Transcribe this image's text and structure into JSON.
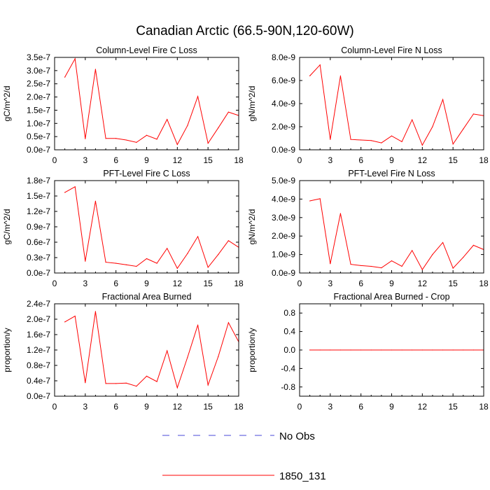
{
  "figure": {
    "title": "Canadian Arctic (66.5-90N,120-60W)",
    "legend": {
      "position": "bottom-center",
      "entries": [
        {
          "label": "No Obs",
          "style": "dashed",
          "color": "#4a4ad8"
        },
        {
          "label": "1850_131",
          "style": "solid",
          "color": "#ff0000"
        }
      ]
    }
  },
  "chart_data": [
    {
      "type": "line",
      "title": "Column-Level Fire C Loss",
      "ylabel": "gC/m^2/d",
      "xlim": [
        0,
        18
      ],
      "ylim": [
        0,
        3.5e-07
      ],
      "xticks": [
        "0",
        "3",
        "6",
        "9",
        "12",
        "15",
        "18"
      ],
      "yticks": [
        "0.0e-7",
        "0.5e-7",
        "1.0e-7",
        "1.5e-7",
        "2.0e-7",
        "2.5e-7",
        "3.0e-7",
        "3.5e-7"
      ],
      "series": [
        {
          "name": "1850_131",
          "color": "#ff0000",
          "x": [
            1,
            2,
            3,
            4,
            5,
            6,
            7,
            8,
            9,
            10,
            11,
            12,
            13,
            14,
            15,
            16,
            17,
            18
          ],
          "y": [
            2.75e-07,
            3.45e-07,
            4.2e-08,
            3.05e-07,
            4.3e-08,
            4.3e-08,
            3.7e-08,
            2.8e-08,
            5.5e-08,
            4e-08,
            1.15e-07,
            2e-08,
            9.2e-08,
            2.02e-07,
            2.5e-08,
            8.3e-08,
            1.43e-07,
            1.3e-07
          ]
        }
      ]
    },
    {
      "type": "line",
      "title": "Column-Level Fire N Loss",
      "ylabel": "gN/m^2/d",
      "xlim": [
        0,
        18
      ],
      "ylim": [
        0,
        8e-09
      ],
      "xticks": [
        "0",
        "3",
        "6",
        "9",
        "12",
        "15",
        "18"
      ],
      "yticks": [
        "0.0e-9",
        "2.0e-9",
        "4.0e-9",
        "6.0e-9",
        "8.0e-9"
      ],
      "series": [
        {
          "name": "1850_131",
          "color": "#ff0000",
          "x": [
            1,
            2,
            3,
            4,
            5,
            6,
            7,
            8,
            9,
            10,
            11,
            12,
            13,
            14,
            15,
            16,
            17,
            18
          ],
          "y": [
            6.4e-09,
            7.35e-09,
            9e-10,
            6.4e-09,
            9e-10,
            8.5e-10,
            8e-10,
            6e-10,
            1.2e-09,
            7e-10,
            2.6e-09,
            4e-10,
            2e-09,
            4.35e-09,
            5e-10,
            1.8e-09,
            3.1e-09,
            2.95e-09
          ]
        }
      ]
    },
    {
      "type": "line",
      "title": "PFT-Level Fire C Loss",
      "ylabel": "gC/m^2/d",
      "xlim": [
        0,
        18
      ],
      "ylim": [
        0,
        1.8e-07
      ],
      "xticks": [
        "0",
        "3",
        "6",
        "9",
        "12",
        "15",
        "18"
      ],
      "yticks": [
        "0.0e-7",
        "0.3e-7",
        "0.6e-7",
        "0.9e-7",
        "1.2e-7",
        "1.5e-7",
        "1.8e-7"
      ],
      "series": [
        {
          "name": "1850_131",
          "color": "#ff0000",
          "x": [
            1,
            2,
            3,
            4,
            5,
            6,
            7,
            8,
            9,
            10,
            11,
            12,
            13,
            14,
            15,
            16,
            17,
            18
          ],
          "y": [
            1.57e-07,
            1.68e-07,
            2.3e-08,
            1.4e-07,
            2.1e-08,
            1.9e-08,
            1.6e-08,
            1.3e-08,
            2.8e-08,
            1.9e-08,
            4.8e-08,
            9e-09,
            3.8e-08,
            7.1e-08,
            1.1e-08,
            3.6e-08,
            6.3e-08,
            5e-08
          ]
        }
      ]
    },
    {
      "type": "line",
      "title": "PFT-Level Fire N Loss",
      "ylabel": "gN/m^2/d",
      "xlim": [
        0,
        18
      ],
      "ylim": [
        0,
        5e-09
      ],
      "xticks": [
        "0",
        "3",
        "6",
        "9",
        "12",
        "15",
        "18"
      ],
      "yticks": [
        "0.0e-9",
        "1.0e-9",
        "2.0e-9",
        "3.0e-9",
        "4.0e-9",
        "5.0e-9"
      ],
      "series": [
        {
          "name": "1850_131",
          "color": "#ff0000",
          "x": [
            1,
            2,
            3,
            4,
            5,
            6,
            7,
            8,
            9,
            10,
            11,
            12,
            13,
            14,
            15,
            16,
            17,
            18
          ],
          "y": [
            3.9e-09,
            4.02e-09,
            5e-10,
            3.22e-09,
            4.7e-10,
            4e-10,
            3.6e-10,
            2.8e-10,
            6.6e-10,
            3.6e-10,
            1.22e-09,
            1.8e-10,
            1e-09,
            1.65e-09,
            2.6e-10,
            8.5e-10,
            1.5e-09,
            1.27e-09
          ]
        }
      ]
    },
    {
      "type": "line",
      "title": "Fractional Area Burned",
      "ylabel": "proportion/y",
      "xlim": [
        0,
        18
      ],
      "ylim": [
        0,
        2.4e-07
      ],
      "xticks": [
        "0",
        "3",
        "6",
        "9",
        "12",
        "15",
        "18"
      ],
      "yticks": [
        "0.0e-7",
        "0.4e-7",
        "0.8e-7",
        "1.2e-7",
        "1.6e-7",
        "2.0e-7",
        "2.4e-7"
      ],
      "series": [
        {
          "name": "1850_131",
          "color": "#ff0000",
          "x": [
            1,
            2,
            3,
            4,
            5,
            6,
            7,
            8,
            9,
            10,
            11,
            12,
            13,
            14,
            15,
            16,
            17,
            18
          ],
          "y": [
            1.93e-07,
            2.08e-07,
            3.5e-08,
            2.2e-07,
            3.3e-08,
            3.3e-08,
            3.4e-08,
            2.6e-08,
            5.2e-08,
            3.8e-08,
            1.18e-07,
            2.2e-08,
            1.01e-07,
            1.85e-07,
            2.9e-08,
            1.03e-07,
            1.91e-07,
            1.41e-07
          ]
        }
      ]
    },
    {
      "type": "line",
      "title": "Fractional Area Burned - Crop",
      "ylabel": "proportion/y",
      "xlim": [
        0,
        18
      ],
      "ylim": [
        -1.0,
        1.0
      ],
      "xticks": [
        "0",
        "3",
        "6",
        "9",
        "12",
        "15",
        "18"
      ],
      "yticks": [
        "-0.8",
        "-0.4",
        "0.0",
        "0.4",
        "0.8"
      ],
      "series": [
        {
          "name": "1850_131",
          "color": "#ff0000",
          "x": [
            1,
            2,
            3,
            4,
            5,
            6,
            7,
            8,
            9,
            10,
            11,
            12,
            13,
            14,
            15,
            16,
            17,
            18
          ],
          "y": [
            0,
            0,
            0,
            0,
            0,
            0,
            0,
            0,
            0,
            0,
            0,
            0,
            0,
            0,
            0,
            0,
            0,
            0
          ]
        }
      ]
    }
  ]
}
